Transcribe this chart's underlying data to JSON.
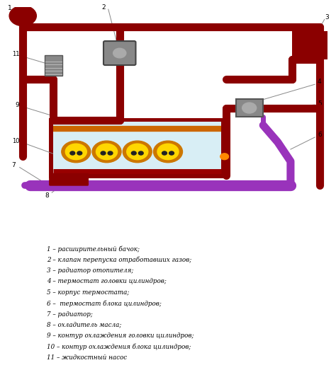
{
  "bg_color": "#ffffff",
  "dark_red": "#8B0000",
  "purple": "#9933BB",
  "yellow": "#FFD700",
  "orange": "#CC7700",
  "blue_light": "#D8EEF5",
  "legend_items": [
    "1 – расширительный бачок;",
    "2 – клапан перепуска отработавших газов;",
    "3 – радиатор отопителя;",
    "4 – термостат головки цилиндров;",
    "5 – корпус термостата;",
    "6 –  термостат блока цилиндров;",
    "7 – радиатор;",
    "8 – охладитель масла;",
    "9 – контур охлаждения головки цилиндров;",
    "10 – контур охлаждения блока цилиндров;",
    "11 – жидкостный насос"
  ]
}
